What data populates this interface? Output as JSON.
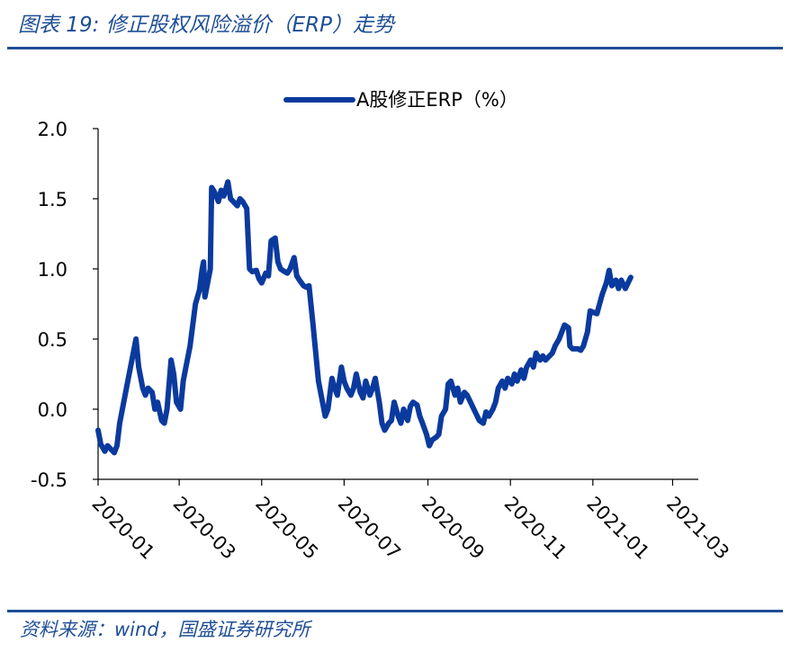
{
  "title": "图表 19:  修正股权风险溢价（ERP）走势",
  "source": "资料来源：wind，国盛证券研究所",
  "colors": {
    "accent": "#1f4e96",
    "series": "#0b3a9e",
    "axis": "#000000"
  },
  "chart_data": {
    "type": "line",
    "legend_placement": "top-center",
    "grid": false,
    "ylim": [
      -0.5,
      2.0
    ],
    "yticks": [
      "-0.5",
      "0.0",
      "0.5",
      "1.0",
      "1.5",
      "2.0"
    ],
    "ytick_values": [
      -0.5,
      0.0,
      0.5,
      1.0,
      1.5,
      2.0
    ],
    "xtick_labels": [
      "2020-01",
      "2020-03",
      "2020-05",
      "2020-07",
      "2020-09",
      "2020-11",
      "2021-01",
      "2021-03"
    ],
    "xlim": [
      "2020-01-01",
      "2021-03-20"
    ],
    "series": [
      {
        "name": "A股修正ERP（%）",
        "points": [
          [
            "2020-01-01",
            -0.15
          ],
          [
            "2020-01-03",
            -0.25
          ],
          [
            "2020-01-06",
            -0.3
          ],
          [
            "2020-01-08",
            -0.26
          ],
          [
            "2020-01-10",
            -0.28
          ],
          [
            "2020-01-13",
            -0.31
          ],
          [
            "2020-01-15",
            -0.26
          ],
          [
            "2020-01-17",
            -0.1
          ],
          [
            "2020-01-20",
            0.05
          ],
          [
            "2020-01-23",
            0.2
          ],
          [
            "2020-01-27",
            0.4
          ],
          [
            "2020-01-29",
            0.5
          ],
          [
            "2020-01-31",
            0.3
          ],
          [
            "2020-02-03",
            0.15
          ],
          [
            "2020-02-05",
            0.1
          ],
          [
            "2020-02-07",
            0.15
          ],
          [
            "2020-02-10",
            0.12
          ],
          [
            "2020-02-12",
            0.0
          ],
          [
            "2020-02-14",
            0.05
          ],
          [
            "2020-02-17",
            -0.08
          ],
          [
            "2020-02-19",
            -0.1
          ],
          [
            "2020-02-21",
            0.0
          ],
          [
            "2020-02-24",
            0.35
          ],
          [
            "2020-02-26",
            0.25
          ],
          [
            "2020-02-28",
            0.05
          ],
          [
            "2020-03-02",
            0.0
          ],
          [
            "2020-03-04",
            0.2
          ],
          [
            "2020-03-06",
            0.3
          ],
          [
            "2020-03-09",
            0.45
          ],
          [
            "2020-03-11",
            0.6
          ],
          [
            "2020-03-13",
            0.75
          ],
          [
            "2020-03-16",
            0.85
          ],
          [
            "2020-03-18",
            1.0
          ],
          [
            "2020-03-19",
            1.05
          ],
          [
            "2020-03-20",
            0.8
          ],
          [
            "2020-03-23",
            0.95
          ],
          [
            "2020-03-24",
            1.0
          ],
          [
            "2020-03-25",
            1.58
          ],
          [
            "2020-03-27",
            1.55
          ],
          [
            "2020-03-30",
            1.48
          ],
          [
            "2020-04-01",
            1.56
          ],
          [
            "2020-04-03",
            1.52
          ],
          [
            "2020-04-06",
            1.62
          ],
          [
            "2020-04-08",
            1.5
          ],
          [
            "2020-04-10",
            1.48
          ],
          [
            "2020-04-13",
            1.45
          ],
          [
            "2020-04-15",
            1.5
          ],
          [
            "2020-04-17",
            1.48
          ],
          [
            "2020-04-20",
            1.43
          ],
          [
            "2020-04-22",
            1.0
          ],
          [
            "2020-04-24",
            0.98
          ],
          [
            "2020-04-27",
            0.99
          ],
          [
            "2020-04-29",
            0.93
          ],
          [
            "2020-05-01",
            0.9
          ],
          [
            "2020-05-04",
            0.97
          ],
          [
            "2020-05-06",
            0.95
          ],
          [
            "2020-05-08",
            1.2
          ],
          [
            "2020-05-11",
            1.22
          ],
          [
            "2020-05-13",
            1.05
          ],
          [
            "2020-05-15",
            1.0
          ],
          [
            "2020-05-18",
            0.98
          ],
          [
            "2020-05-20",
            0.97
          ],
          [
            "2020-05-22",
            1.0
          ],
          [
            "2020-05-25",
            1.08
          ],
          [
            "2020-05-27",
            0.95
          ],
          [
            "2020-05-29",
            0.92
          ],
          [
            "2020-06-01",
            0.88
          ],
          [
            "2020-06-03",
            0.87
          ],
          [
            "2020-06-05",
            0.88
          ],
          [
            "2020-06-08",
            0.6
          ],
          [
            "2020-06-10",
            0.4
          ],
          [
            "2020-06-12",
            0.2
          ],
          [
            "2020-06-15",
            0.05
          ],
          [
            "2020-06-17",
            -0.05
          ],
          [
            "2020-06-19",
            0.0
          ],
          [
            "2020-06-22",
            0.22
          ],
          [
            "2020-06-24",
            0.15
          ],
          [
            "2020-06-26",
            0.1
          ],
          [
            "2020-06-29",
            0.3
          ],
          [
            "2020-07-01",
            0.2
          ],
          [
            "2020-07-03",
            0.15
          ],
          [
            "2020-07-06",
            0.1
          ],
          [
            "2020-07-08",
            0.15
          ],
          [
            "2020-07-10",
            0.25
          ],
          [
            "2020-07-13",
            0.12
          ],
          [
            "2020-07-15",
            0.08
          ],
          [
            "2020-07-17",
            0.2
          ],
          [
            "2020-07-20",
            0.1
          ],
          [
            "2020-07-22",
            0.15
          ],
          [
            "2020-07-24",
            0.22
          ],
          [
            "2020-07-27",
            0.05
          ],
          [
            "2020-07-29",
            -0.1
          ],
          [
            "2020-07-31",
            -0.15
          ],
          [
            "2020-08-03",
            -0.1
          ],
          [
            "2020-08-05",
            -0.08
          ],
          [
            "2020-08-07",
            0.05
          ],
          [
            "2020-08-10",
            -0.05
          ],
          [
            "2020-08-12",
            -0.1
          ],
          [
            "2020-08-14",
            0.0
          ],
          [
            "2020-08-17",
            -0.08
          ],
          [
            "2020-08-19",
            0.02
          ],
          [
            "2020-08-21",
            0.05
          ],
          [
            "2020-08-24",
            0.03
          ],
          [
            "2020-08-26",
            -0.05
          ],
          [
            "2020-08-28",
            -0.1
          ],
          [
            "2020-08-31",
            -0.18
          ],
          [
            "2020-09-02",
            -0.26
          ],
          [
            "2020-09-04",
            -0.22
          ],
          [
            "2020-09-07",
            -0.2
          ],
          [
            "2020-09-09",
            -0.18
          ],
          [
            "2020-09-11",
            -0.05
          ],
          [
            "2020-09-14",
            0.0
          ],
          [
            "2020-09-16",
            0.18
          ],
          [
            "2020-09-18",
            0.2
          ],
          [
            "2020-09-21",
            0.1
          ],
          [
            "2020-09-23",
            0.15
          ],
          [
            "2020-09-25",
            0.05
          ],
          [
            "2020-09-28",
            0.12
          ],
          [
            "2020-09-30",
            0.1
          ],
          [
            "2020-10-09",
            -0.08
          ],
          [
            "2020-10-12",
            -0.1
          ],
          [
            "2020-10-14",
            -0.02
          ],
          [
            "2020-10-16",
            -0.05
          ],
          [
            "2020-10-19",
            0.0
          ],
          [
            "2020-10-21",
            0.05
          ],
          [
            "2020-10-23",
            0.15
          ],
          [
            "2020-10-26",
            0.2
          ],
          [
            "2020-10-28",
            0.15
          ],
          [
            "2020-10-30",
            0.22
          ],
          [
            "2020-11-02",
            0.18
          ],
          [
            "2020-11-04",
            0.25
          ],
          [
            "2020-11-06",
            0.2
          ],
          [
            "2020-11-09",
            0.28
          ],
          [
            "2020-11-11",
            0.22
          ],
          [
            "2020-11-13",
            0.3
          ],
          [
            "2020-11-16",
            0.35
          ],
          [
            "2020-11-18",
            0.3
          ],
          [
            "2020-11-20",
            0.4
          ],
          [
            "2020-11-23",
            0.35
          ],
          [
            "2020-11-25",
            0.38
          ],
          [
            "2020-11-27",
            0.35
          ],
          [
            "2020-11-30",
            0.38
          ],
          [
            "2020-12-02",
            0.4
          ],
          [
            "2020-12-04",
            0.45
          ],
          [
            "2020-12-07",
            0.5
          ],
          [
            "2020-12-09",
            0.55
          ],
          [
            "2020-12-11",
            0.6
          ],
          [
            "2020-12-14",
            0.58
          ],
          [
            "2020-12-15",
            0.45
          ],
          [
            "2020-12-17",
            0.43
          ],
          [
            "2020-12-21",
            0.43
          ],
          [
            "2020-12-23",
            0.42
          ],
          [
            "2020-12-25",
            0.45
          ],
          [
            "2020-12-28",
            0.55
          ],
          [
            "2020-12-30",
            0.7
          ],
          [
            "2021-01-04",
            0.68
          ],
          [
            "2021-01-06",
            0.75
          ],
          [
            "2021-01-08",
            0.82
          ],
          [
            "2021-01-11",
            0.9
          ],
          [
            "2021-01-13",
            0.99
          ],
          [
            "2021-01-15",
            0.88
          ],
          [
            "2021-01-18",
            0.92
          ],
          [
            "2021-01-20",
            0.86
          ],
          [
            "2021-01-22",
            0.92
          ],
          [
            "2021-01-25",
            0.86
          ],
          [
            "2021-01-27",
            0.9
          ],
          [
            "2021-01-29",
            0.94
          ]
        ]
      }
    ]
  }
}
